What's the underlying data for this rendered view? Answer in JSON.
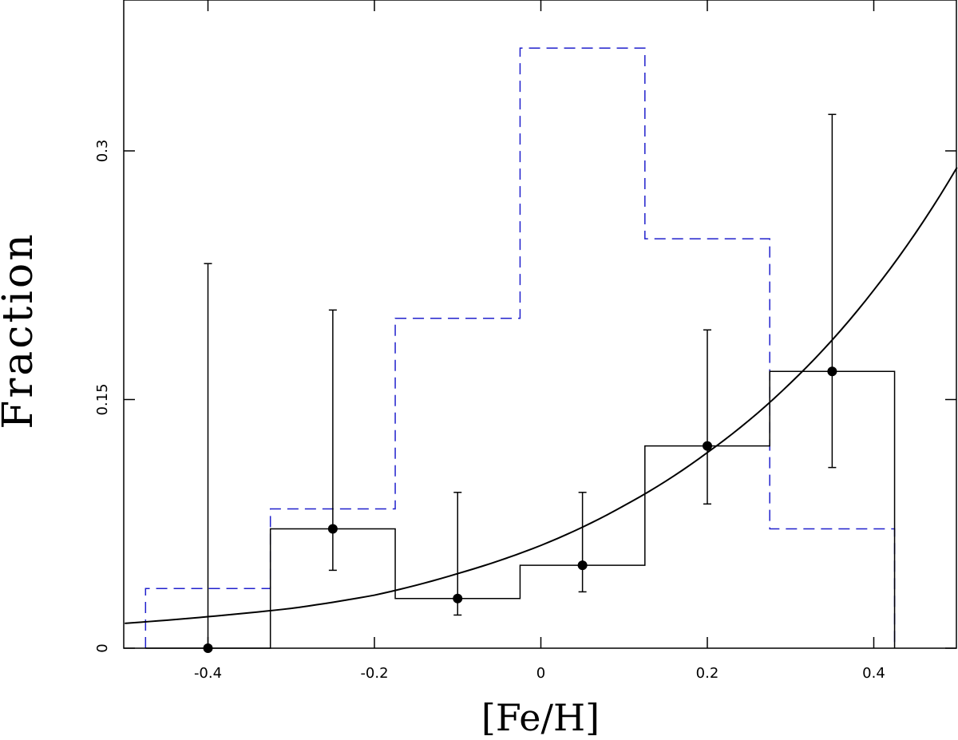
{
  "chart_data": {
    "type": "histogram",
    "xlabel": "[Fe/H]",
    "ylabel": "Fraction",
    "xlim": [
      -0.5,
      0.5
    ],
    "ylim": [
      0,
      0.39
    ],
    "x_ticks": [
      -0.4,
      -0.2,
      0,
      0.2,
      0.4
    ],
    "x_tick_labels": [
      "-0.4",
      "-0.2",
      "0",
      "0.2",
      "0.4"
    ],
    "y_ticks": [
      0,
      0.15,
      0.3
    ],
    "y_tick_labels": [
      "0",
      "0.15",
      "0.3"
    ],
    "grid": false,
    "bin_edges": [
      -0.475,
      -0.325,
      -0.175,
      -0.025,
      0.125,
      0.275,
      0.425
    ],
    "series": [
      {
        "kind": "histogram-with-errorbars",
        "color": "#000000",
        "line_style": "solid",
        "bin_centers": [
          -0.4,
          -0.25,
          -0.1,
          0.05,
          0.2,
          0.35
        ],
        "values": [
          0.0,
          0.072,
          0.03,
          0.05,
          0.122,
          0.167
        ],
        "error_low": [
          0.0,
          0.047,
          0.02,
          0.034,
          0.087,
          0.109
        ],
        "error_high": [
          0.232,
          0.204,
          0.094,
          0.094,
          0.192,
          0.322
        ]
      },
      {
        "kind": "histogram",
        "color": "#2020cc",
        "line_style": "dashed",
        "values": [
          0.036,
          0.084,
          0.199,
          0.362,
          0.247,
          0.072
        ]
      },
      {
        "kind": "curve",
        "color": "#000000",
        "line_style": "solid",
        "x": [
          -0.5,
          -0.4,
          -0.3,
          -0.2,
          -0.1,
          0.0,
          0.1,
          0.2,
          0.3,
          0.4,
          0.5
        ],
        "y": [
          0.015,
          0.019,
          0.024,
          0.032,
          0.045,
          0.062,
          0.086,
          0.118,
          0.16,
          0.216,
          0.29
        ]
      }
    ]
  }
}
